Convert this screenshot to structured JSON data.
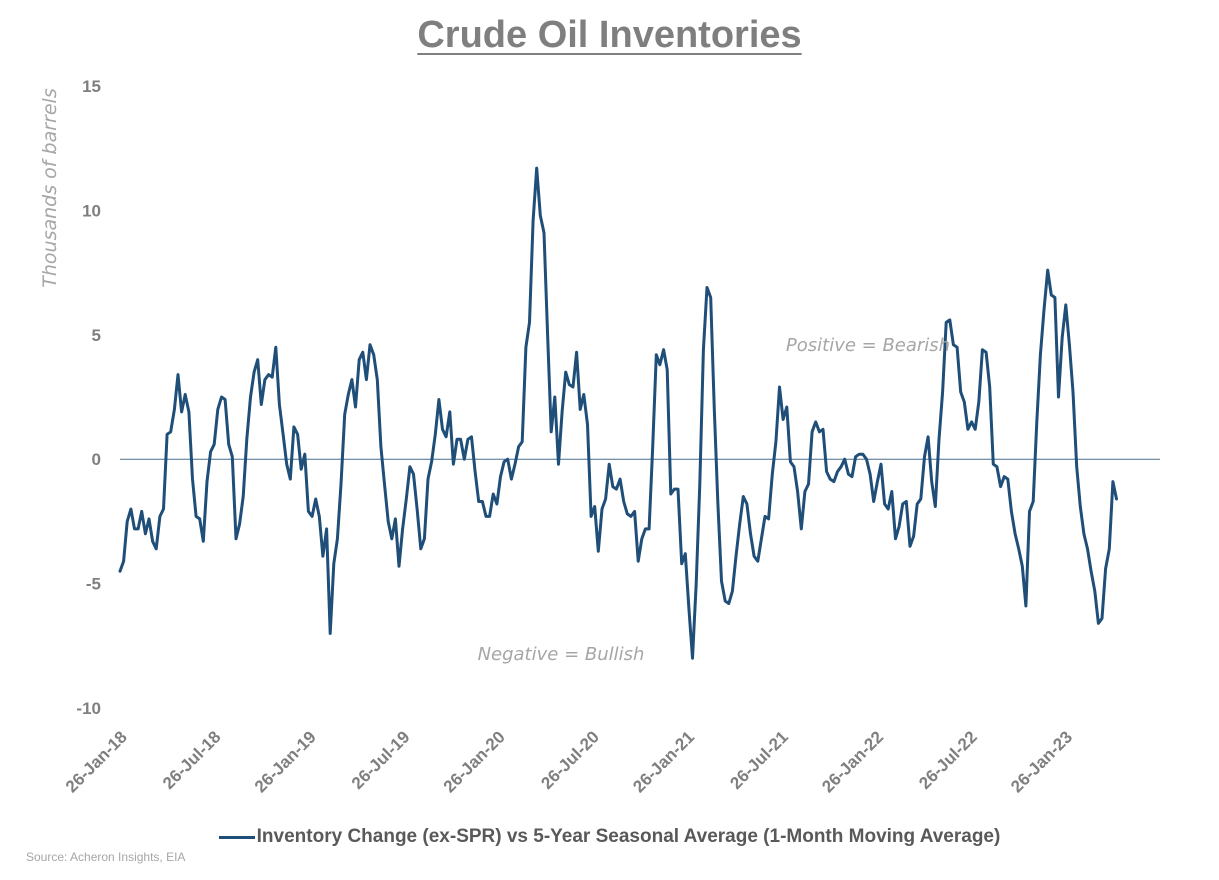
{
  "page": {
    "title": "Crude Oil Inventories",
    "source": "Source: Acheron Insights, EIA"
  },
  "chart_data": {
    "type": "line",
    "title": "Crude Oil Inventories",
    "ylabel": "Thousands of barrels",
    "xlabel": "",
    "ylim": [
      -10,
      15
    ],
    "yticks": [
      15,
      10,
      5,
      0,
      -5,
      -10
    ],
    "xlim": [
      "2018-01-26",
      "2023-07-28"
    ],
    "xticks": [
      "26-Jan-18",
      "26-Jul-18",
      "26-Jan-19",
      "26-Jul-19",
      "26-Jan-20",
      "26-Jul-20",
      "26-Jan-21",
      "26-Jul-21",
      "26-Jan-22",
      "26-Jul-22",
      "26-Jan-23"
    ],
    "xtick_dates": [
      "2018-01-26",
      "2018-07-26",
      "2019-01-26",
      "2019-07-26",
      "2020-01-26",
      "2020-07-26",
      "2021-01-26",
      "2021-07-26",
      "2022-01-26",
      "2022-07-26",
      "2023-01-26"
    ],
    "grid": false,
    "zero_line": true,
    "legend_position": "bottom",
    "annotations": [
      "Positive = Bearish",
      "Negative = Bullish"
    ],
    "series": [
      {
        "name": "Inventory Change (ex-SPR) vs 5-Year Seasonal Average (1-Month Moving Average)",
        "color": "#1f4e79",
        "points": [
          [
            "2018-01-26",
            -4.5
          ],
          [
            "2018-02-02",
            -4.1
          ],
          [
            "2018-02-09",
            -2.5
          ],
          [
            "2018-02-16",
            -2.0
          ],
          [
            "2018-02-23",
            -2.8
          ],
          [
            "2018-03-02",
            -2.8
          ],
          [
            "2018-03-09",
            -2.1
          ],
          [
            "2018-03-16",
            -3.0
          ],
          [
            "2018-03-23",
            -2.4
          ],
          [
            "2018-03-30",
            -3.3
          ],
          [
            "2018-04-06",
            -3.6
          ],
          [
            "2018-04-13",
            -2.3
          ],
          [
            "2018-04-20",
            -2.0
          ],
          [
            "2018-04-27",
            1.0
          ],
          [
            "2018-05-04",
            1.1
          ],
          [
            "2018-05-11",
            2.0
          ],
          [
            "2018-05-18",
            3.4
          ],
          [
            "2018-05-25",
            1.9
          ],
          [
            "2018-06-01",
            2.6
          ],
          [
            "2018-06-08",
            1.9
          ],
          [
            "2018-06-15",
            -0.8
          ],
          [
            "2018-06-22",
            -2.3
          ],
          [
            "2018-06-29",
            -2.4
          ],
          [
            "2018-07-06",
            -3.3
          ],
          [
            "2018-07-13",
            -0.9
          ],
          [
            "2018-07-20",
            0.3
          ],
          [
            "2018-07-27",
            0.6
          ],
          [
            "2018-08-03",
            2.0
          ],
          [
            "2018-08-10",
            2.5
          ],
          [
            "2018-08-17",
            2.4
          ],
          [
            "2018-08-24",
            0.6
          ],
          [
            "2018-08-31",
            0.1
          ],
          [
            "2018-09-07",
            -3.2
          ],
          [
            "2018-09-14",
            -2.6
          ],
          [
            "2018-09-21",
            -1.5
          ],
          [
            "2018-09-28",
            0.8
          ],
          [
            "2018-10-05",
            2.5
          ],
          [
            "2018-10-12",
            3.5
          ],
          [
            "2018-10-19",
            4.0
          ],
          [
            "2018-10-26",
            2.2
          ],
          [
            "2018-11-02",
            3.2
          ],
          [
            "2018-11-09",
            3.4
          ],
          [
            "2018-11-16",
            3.3
          ],
          [
            "2018-11-23",
            4.5
          ],
          [
            "2018-11-30",
            2.2
          ],
          [
            "2018-12-07",
            1.0
          ],
          [
            "2018-12-14",
            -0.2
          ],
          [
            "2018-12-21",
            -0.8
          ],
          [
            "2018-12-28",
            1.3
          ],
          [
            "2019-01-04",
            1.0
          ],
          [
            "2019-01-11",
            -0.4
          ],
          [
            "2019-01-18",
            0.2
          ],
          [
            "2019-01-25",
            -2.1
          ],
          [
            "2019-02-01",
            -2.3
          ],
          [
            "2019-02-08",
            -1.6
          ],
          [
            "2019-02-15",
            -2.3
          ],
          [
            "2019-02-22",
            -3.9
          ],
          [
            "2019-03-01",
            -2.8
          ],
          [
            "2019-03-08",
            -7.0
          ],
          [
            "2019-03-15",
            -4.2
          ],
          [
            "2019-03-22",
            -3.2
          ],
          [
            "2019-03-29",
            -1.0
          ],
          [
            "2019-04-05",
            1.8
          ],
          [
            "2019-04-12",
            2.6
          ],
          [
            "2019-04-19",
            3.2
          ],
          [
            "2019-04-26",
            2.1
          ],
          [
            "2019-05-03",
            4.0
          ],
          [
            "2019-05-10",
            4.3
          ],
          [
            "2019-05-17",
            3.2
          ],
          [
            "2019-05-24",
            4.6
          ],
          [
            "2019-05-31",
            4.2
          ],
          [
            "2019-06-07",
            3.2
          ],
          [
            "2019-06-14",
            0.5
          ],
          [
            "2019-06-21",
            -1.0
          ],
          [
            "2019-06-28",
            -2.5
          ],
          [
            "2019-07-05",
            -3.2
          ],
          [
            "2019-07-12",
            -2.4
          ],
          [
            "2019-07-19",
            -4.3
          ],
          [
            "2019-07-26",
            -2.8
          ],
          [
            "2019-08-02",
            -1.6
          ],
          [
            "2019-08-09",
            -0.3
          ],
          [
            "2019-08-16",
            -0.6
          ],
          [
            "2019-08-23",
            -2.0
          ],
          [
            "2019-08-30",
            -3.6
          ],
          [
            "2019-09-06",
            -3.2
          ],
          [
            "2019-09-13",
            -0.8
          ],
          [
            "2019-09-20",
            -0.1
          ],
          [
            "2019-09-27",
            1.0
          ],
          [
            "2019-10-04",
            2.4
          ],
          [
            "2019-10-11",
            1.2
          ],
          [
            "2019-10-18",
            0.9
          ],
          [
            "2019-10-25",
            1.9
          ],
          [
            "2019-11-01",
            -0.2
          ],
          [
            "2019-11-08",
            0.8
          ],
          [
            "2019-11-15",
            0.8
          ],
          [
            "2019-11-22",
            0.0
          ],
          [
            "2019-11-29",
            0.8
          ],
          [
            "2019-12-06",
            0.9
          ],
          [
            "2019-12-13",
            -0.5
          ],
          [
            "2019-12-20",
            -1.7
          ],
          [
            "2019-12-27",
            -1.7
          ],
          [
            "2020-01-03",
            -2.3
          ],
          [
            "2020-01-10",
            -2.3
          ],
          [
            "2020-01-17",
            -1.4
          ],
          [
            "2020-01-24",
            -1.8
          ],
          [
            "2020-01-31",
            -0.7
          ],
          [
            "2020-02-07",
            -0.1
          ],
          [
            "2020-02-14",
            0.0
          ],
          [
            "2020-02-21",
            -0.8
          ],
          [
            "2020-02-28",
            -0.2
          ],
          [
            "2020-03-06",
            0.5
          ],
          [
            "2020-03-13",
            0.7
          ],
          [
            "2020-03-20",
            4.5
          ],
          [
            "2020-03-27",
            5.5
          ],
          [
            "2020-04-03",
            9.6
          ],
          [
            "2020-04-10",
            11.7
          ],
          [
            "2020-04-17",
            9.8
          ],
          [
            "2020-04-24",
            9.1
          ],
          [
            "2020-05-01",
            5.0
          ],
          [
            "2020-05-08",
            1.1
          ],
          [
            "2020-05-15",
            2.5
          ],
          [
            "2020-05-22",
            -0.2
          ],
          [
            "2020-05-29",
            1.9
          ],
          [
            "2020-06-05",
            3.5
          ],
          [
            "2020-06-12",
            3.0
          ],
          [
            "2020-06-19",
            2.9
          ],
          [
            "2020-06-26",
            4.3
          ],
          [
            "2020-07-03",
            2.0
          ],
          [
            "2020-07-10",
            2.6
          ],
          [
            "2020-07-17",
            1.4
          ],
          [
            "2020-07-24",
            -2.3
          ],
          [
            "2020-07-31",
            -1.9
          ],
          [
            "2020-08-07",
            -3.7
          ],
          [
            "2020-08-14",
            -2.0
          ],
          [
            "2020-08-21",
            -1.6
          ],
          [
            "2020-08-28",
            -0.2
          ],
          [
            "2020-09-04",
            -1.1
          ],
          [
            "2020-09-11",
            -1.2
          ],
          [
            "2020-09-18",
            -0.8
          ],
          [
            "2020-09-25",
            -1.7
          ],
          [
            "2020-10-02",
            -2.2
          ],
          [
            "2020-10-09",
            -2.3
          ],
          [
            "2020-10-16",
            -2.1
          ],
          [
            "2020-10-23",
            -4.1
          ],
          [
            "2020-10-30",
            -3.2
          ],
          [
            "2020-11-06",
            -2.8
          ],
          [
            "2020-11-13",
            -2.8
          ],
          [
            "2020-11-20",
            0.5
          ],
          [
            "2020-11-27",
            4.2
          ],
          [
            "2020-12-04",
            3.8
          ],
          [
            "2020-12-11",
            4.4
          ],
          [
            "2020-12-18",
            3.6
          ],
          [
            "2020-12-25",
            -1.4
          ],
          [
            "2021-01-01",
            -1.2
          ],
          [
            "2021-01-08",
            -1.2
          ],
          [
            "2021-01-15",
            -4.2
          ],
          [
            "2021-01-22",
            -3.8
          ],
          [
            "2021-01-29",
            -6.0
          ],
          [
            "2021-02-05",
            -8.0
          ],
          [
            "2021-02-12",
            -5.0
          ],
          [
            "2021-02-19",
            -1.0
          ],
          [
            "2021-02-26",
            4.4
          ],
          [
            "2021-03-05",
            6.9
          ],
          [
            "2021-03-12",
            6.5
          ],
          [
            "2021-03-19",
            2.0
          ],
          [
            "2021-03-26",
            -1.8
          ],
          [
            "2021-04-02",
            -4.9
          ],
          [
            "2021-04-09",
            -5.7
          ],
          [
            "2021-04-16",
            -5.8
          ],
          [
            "2021-04-23",
            -5.3
          ],
          [
            "2021-04-30",
            -3.9
          ],
          [
            "2021-05-07",
            -2.6
          ],
          [
            "2021-05-14",
            -1.5
          ],
          [
            "2021-05-21",
            -1.8
          ],
          [
            "2021-05-28",
            -3.0
          ],
          [
            "2021-06-04",
            -3.9
          ],
          [
            "2021-06-11",
            -4.1
          ],
          [
            "2021-06-18",
            -3.2
          ],
          [
            "2021-06-25",
            -2.3
          ],
          [
            "2021-07-02",
            -2.4
          ],
          [
            "2021-07-09",
            -0.6
          ],
          [
            "2021-07-16",
            0.7
          ],
          [
            "2021-07-23",
            2.9
          ],
          [
            "2021-07-30",
            1.6
          ],
          [
            "2021-08-06",
            2.1
          ],
          [
            "2021-08-13",
            -0.1
          ],
          [
            "2021-08-20",
            -0.3
          ],
          [
            "2021-08-27",
            -1.3
          ],
          [
            "2021-09-03",
            -2.8
          ],
          [
            "2021-09-10",
            -1.3
          ],
          [
            "2021-09-17",
            -1.0
          ],
          [
            "2021-09-24",
            1.1
          ],
          [
            "2021-10-01",
            1.5
          ],
          [
            "2021-10-08",
            1.1
          ],
          [
            "2021-10-15",
            1.2
          ],
          [
            "2021-10-22",
            -0.5
          ],
          [
            "2021-10-29",
            -0.8
          ],
          [
            "2021-11-05",
            -0.9
          ],
          [
            "2021-11-12",
            -0.5
          ],
          [
            "2021-11-19",
            -0.3
          ],
          [
            "2021-11-26",
            0.0
          ],
          [
            "2021-12-03",
            -0.6
          ],
          [
            "2021-12-10",
            -0.7
          ],
          [
            "2021-12-17",
            0.1
          ],
          [
            "2021-12-24",
            0.2
          ],
          [
            "2021-12-31",
            0.2
          ],
          [
            "2022-01-07",
            0.0
          ],
          [
            "2022-01-14",
            -0.6
          ],
          [
            "2022-01-21",
            -1.7
          ],
          [
            "2022-01-28",
            -0.9
          ],
          [
            "2022-02-04",
            -0.2
          ],
          [
            "2022-02-11",
            -1.8
          ],
          [
            "2022-02-18",
            -2.0
          ],
          [
            "2022-02-25",
            -1.3
          ],
          [
            "2022-03-04",
            -3.2
          ],
          [
            "2022-03-11",
            -2.7
          ],
          [
            "2022-03-18",
            -1.8
          ],
          [
            "2022-03-25",
            -1.7
          ],
          [
            "2022-04-01",
            -3.5
          ],
          [
            "2022-04-08",
            -3.1
          ],
          [
            "2022-04-15",
            -1.8
          ],
          [
            "2022-04-22",
            -1.6
          ],
          [
            "2022-04-29",
            0.1
          ],
          [
            "2022-05-06",
            0.9
          ],
          [
            "2022-05-13",
            -0.9
          ],
          [
            "2022-05-20",
            -1.9
          ],
          [
            "2022-05-27",
            0.8
          ],
          [
            "2022-06-03",
            2.7
          ],
          [
            "2022-06-10",
            5.5
          ],
          [
            "2022-06-17",
            5.6
          ],
          [
            "2022-06-24",
            4.6
          ],
          [
            "2022-07-01",
            4.5
          ],
          [
            "2022-07-08",
            2.7
          ],
          [
            "2022-07-15",
            2.3
          ],
          [
            "2022-07-22",
            1.2
          ],
          [
            "2022-07-29",
            1.5
          ],
          [
            "2022-08-05",
            1.2
          ],
          [
            "2022-08-12",
            2.3
          ],
          [
            "2022-08-19",
            4.4
          ],
          [
            "2022-08-26",
            4.3
          ],
          [
            "2022-09-02",
            2.9
          ],
          [
            "2022-09-09",
            -0.2
          ],
          [
            "2022-09-16",
            -0.3
          ],
          [
            "2022-09-23",
            -1.1
          ],
          [
            "2022-09-30",
            -0.7
          ],
          [
            "2022-10-07",
            -0.8
          ],
          [
            "2022-10-14",
            -2.1
          ],
          [
            "2022-10-21",
            -3.0
          ],
          [
            "2022-10-28",
            -3.6
          ],
          [
            "2022-11-04",
            -4.3
          ],
          [
            "2022-11-11",
            -5.9
          ],
          [
            "2022-11-18",
            -2.1
          ],
          [
            "2022-11-25",
            -1.7
          ],
          [
            "2022-12-02",
            1.5
          ],
          [
            "2022-12-09",
            4.2
          ],
          [
            "2022-12-16",
            6.0
          ],
          [
            "2022-12-23",
            7.6
          ],
          [
            "2022-12-30",
            6.6
          ],
          [
            "2023-01-06",
            6.5
          ],
          [
            "2023-01-13",
            2.5
          ],
          [
            "2023-01-20",
            4.9
          ],
          [
            "2023-01-27",
            6.2
          ],
          [
            "2023-02-03",
            4.6
          ],
          [
            "2023-02-10",
            2.7
          ],
          [
            "2023-02-17",
            -0.3
          ],
          [
            "2023-02-24",
            -1.9
          ],
          [
            "2023-03-03",
            -3.0
          ],
          [
            "2023-03-10",
            -3.6
          ],
          [
            "2023-03-17",
            -4.5
          ],
          [
            "2023-03-24",
            -5.3
          ],
          [
            "2023-03-31",
            -6.6
          ],
          [
            "2023-04-07",
            -6.4
          ],
          [
            "2023-04-14",
            -4.4
          ],
          [
            "2023-04-21",
            -3.6
          ],
          [
            "2023-04-28",
            -0.9
          ],
          [
            "2023-05-05",
            -1.6
          ]
        ]
      }
    ]
  }
}
